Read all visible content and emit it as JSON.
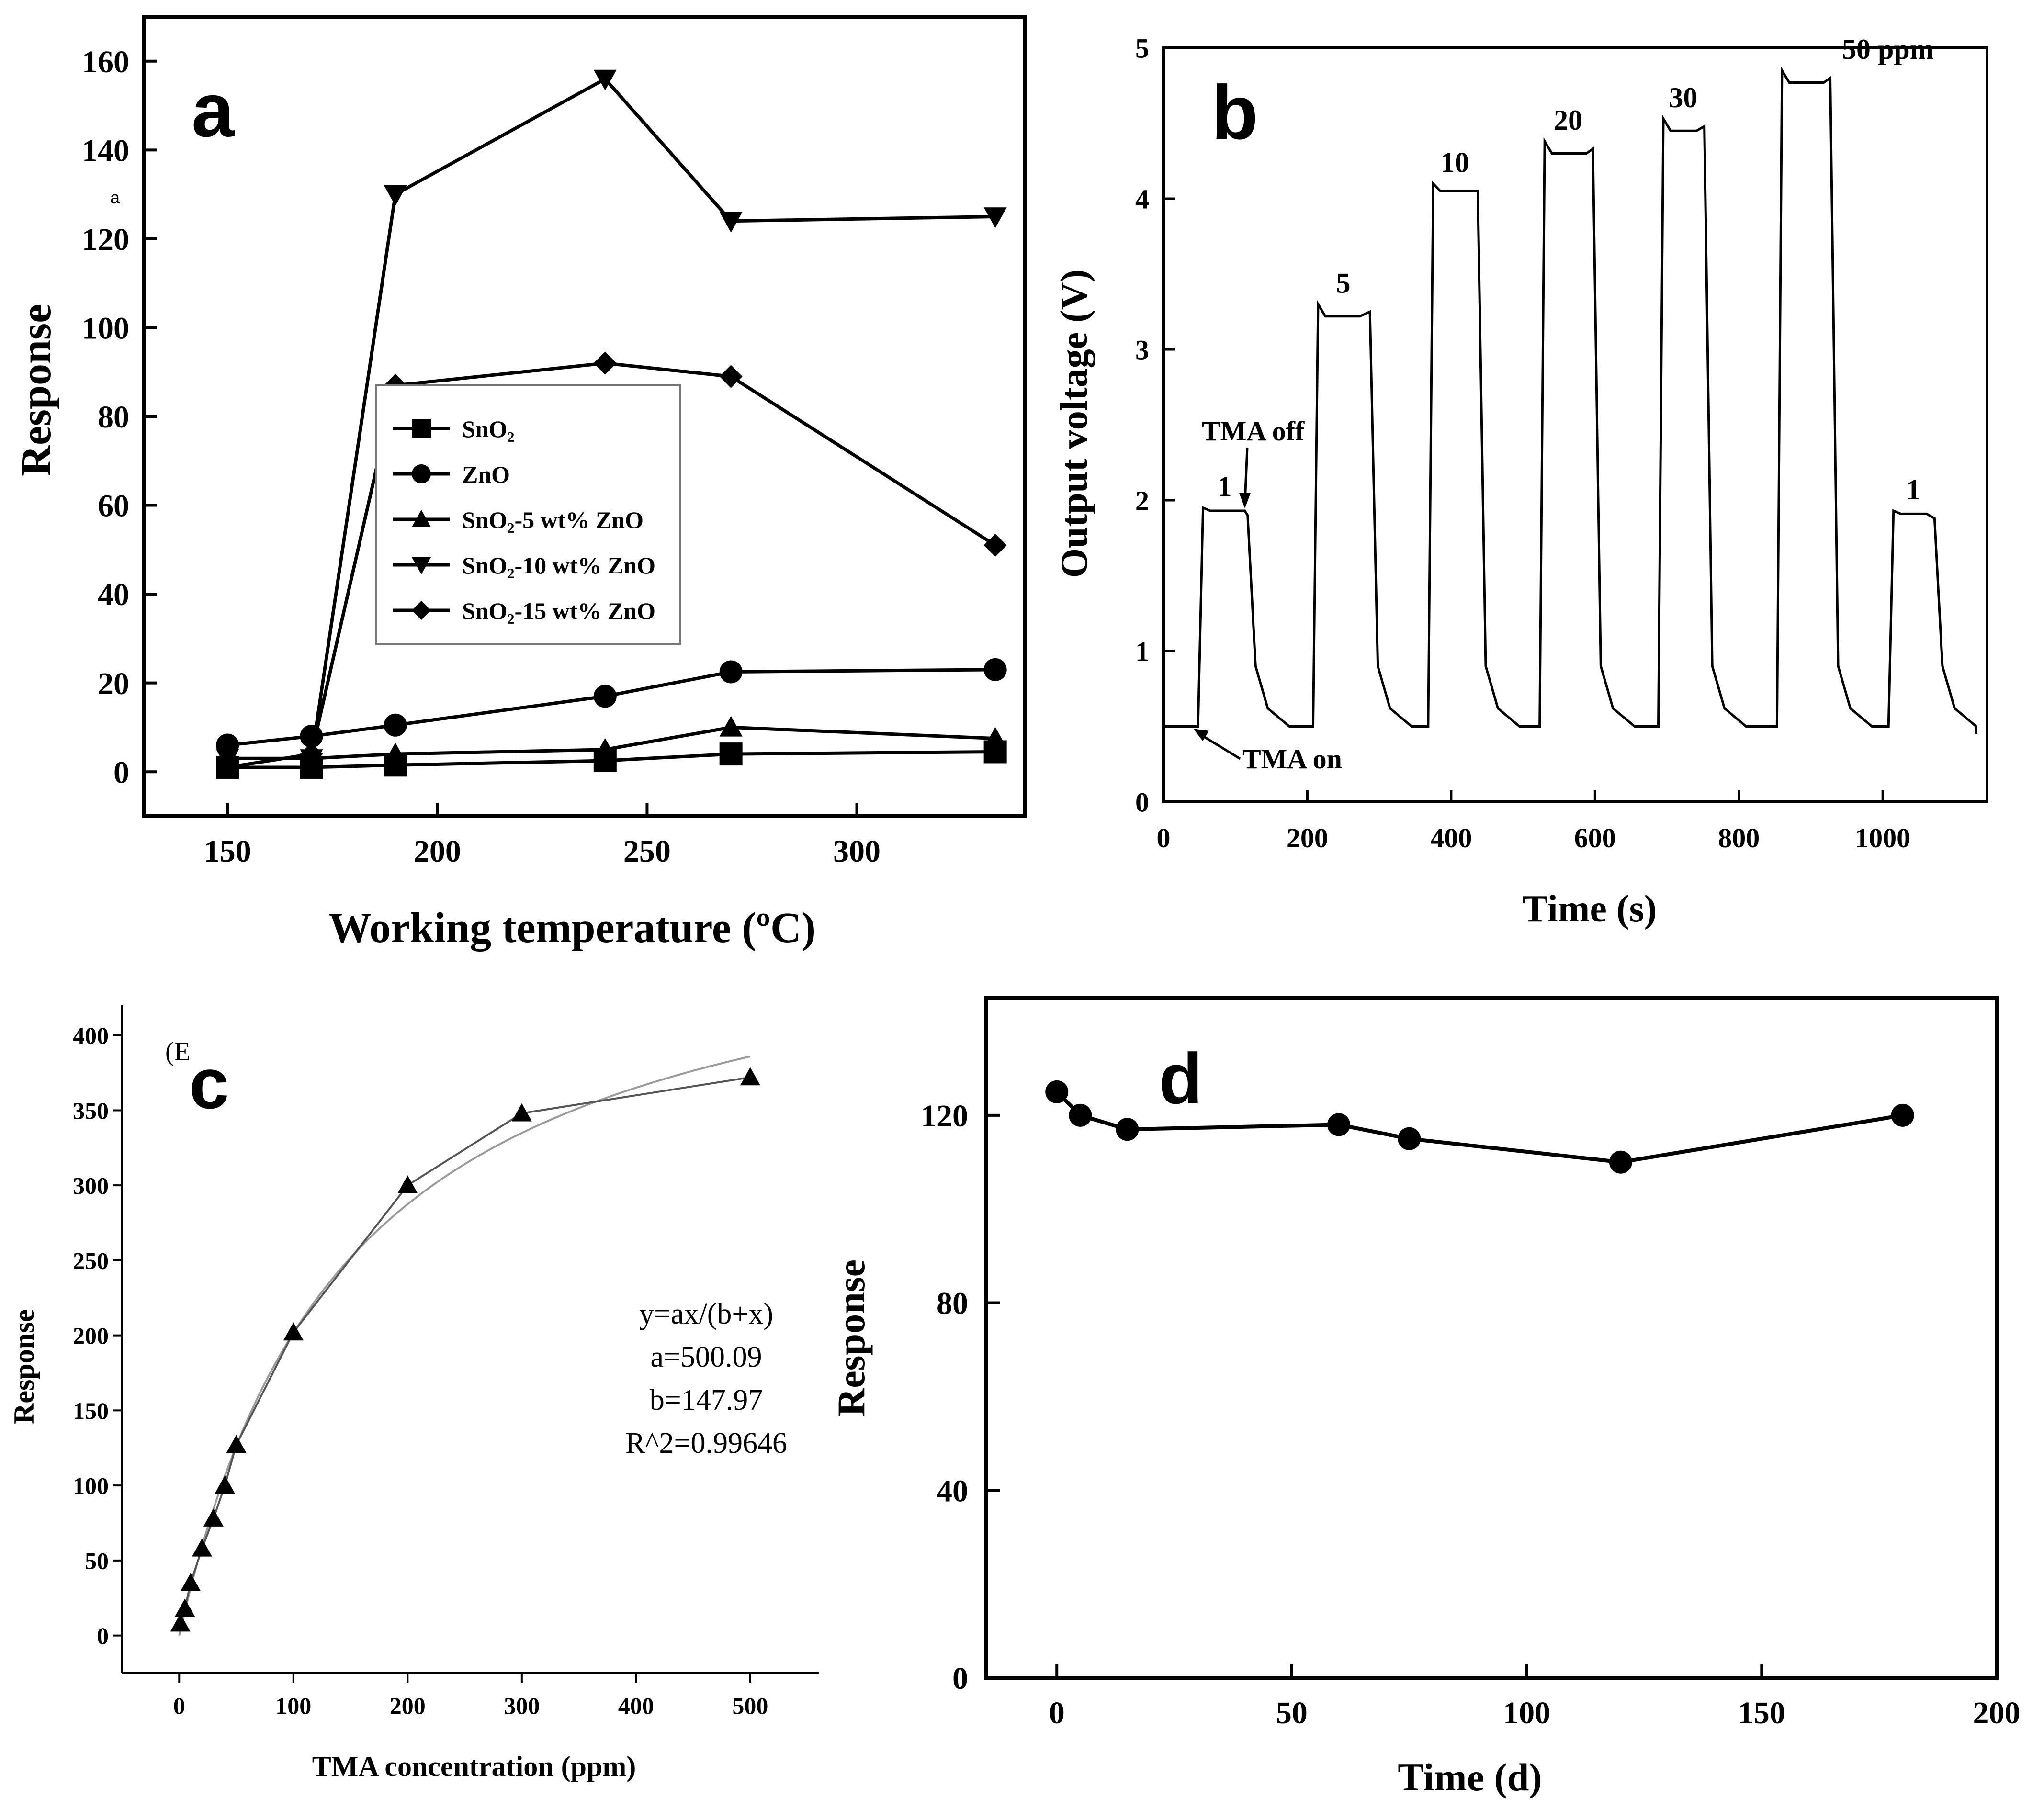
{
  "figure": {
    "colors": {
      "ink": "#000000",
      "fit": "#9a9a9a",
      "background": "#ffffff"
    }
  },
  "chart_data": [
    {
      "id": "a",
      "panel_label": "a",
      "type": "line",
      "xlabel": "Working temperature (ºC)",
      "ylabel": "Response",
      "stray_mark": "a",
      "xlim": [
        130,
        340
      ],
      "ylim": [
        -10,
        170
      ],
      "xticks": [
        150,
        200,
        250,
        300
      ],
      "yticks": [
        0,
        20,
        40,
        60,
        80,
        100,
        120,
        140,
        160
      ],
      "x": [
        150,
        170,
        190,
        240,
        270,
        333
      ],
      "legend_position": "center-left",
      "series": [
        {
          "name": "SnO₂",
          "marker": "square",
          "values": [
            1,
            1,
            1.5,
            2.5,
            4,
            4.5
          ]
        },
        {
          "name": "ZnO",
          "marker": "circle",
          "values": [
            6,
            8,
            10.5,
            17,
            22.5,
            23
          ]
        },
        {
          "name": "SnO₂-5 wt% ZnO",
          "marker": "triangle-up",
          "values": [
            3,
            3,
            4,
            5,
            10,
            7.5
          ]
        },
        {
          "name": "SnO₂-10 wt% ZnO",
          "marker": "triangle-down",
          "values": [
            3,
            3,
            130,
            156,
            124,
            125
          ]
        },
        {
          "name": "SnO₂-15 wt% ZnO",
          "marker": "diamond",
          "values": [
            1,
            4,
            87,
            92,
            89,
            51
          ]
        }
      ]
    },
    {
      "id": "b",
      "panel_label": "b",
      "type": "line",
      "xlabel": "Time (s)",
      "ylabel": "Output voltage (V)",
      "xlim": [
        0,
        1145
      ],
      "ylim": [
        0,
        5
      ],
      "xticks": [
        0,
        200,
        400,
        600,
        800,
        1000
      ],
      "yticks": [
        0,
        1,
        2,
        3,
        4,
        5
      ],
      "pulses": [
        {
          "label": "1",
          "on": 50,
          "off": 120,
          "level": 1.9
        },
        {
          "label": "5",
          "on": 210,
          "off": 290,
          "level": 3.25
        },
        {
          "label": "10",
          "on": 370,
          "off": 440,
          "level": 4.05
        },
        {
          "label": "20",
          "on": 525,
          "off": 600,
          "level": 4.33
        },
        {
          "label": "30",
          "on": 690,
          "off": 755,
          "level": 4.48
        },
        {
          "label": "50 ppm",
          "on": 855,
          "off": 930,
          "level": 4.8
        },
        {
          "label": "1",
          "on": 1010,
          "off": 1075,
          "level": 1.88
        }
      ],
      "baseline": 0.5,
      "annotations": [
        "TMA off",
        "TMA on"
      ]
    },
    {
      "id": "c",
      "panel_label": "c",
      "type": "scatter",
      "xlabel": "TMA concentration (ppm)",
      "ylabel": "Response",
      "stray_mark": "(E",
      "xlim": [
        -50,
        560
      ],
      "ylim": [
        -25,
        420
      ],
      "xticks": [
        0,
        100,
        200,
        300,
        400,
        500
      ],
      "yticks": [
        0,
        50,
        100,
        150,
        200,
        250,
        300,
        350,
        400
      ],
      "x": [
        1,
        5,
        10,
        20,
        30,
        40,
        50,
        100,
        200,
        300,
        500
      ],
      "y": [
        8,
        18,
        35,
        58,
        78,
        100,
        127,
        202,
        300,
        348,
        372
      ],
      "fit": {
        "a": 500.09,
        "b": 147.97,
        "x_max": 500
      },
      "equation_lines": [
        "y=ax/(b+x)",
        "a=500.09",
        "b=147.97",
        "R^2=0.99646"
      ]
    },
    {
      "id": "d",
      "panel_label": "d",
      "type": "line",
      "xlabel": "Time (d)",
      "ylabel": "Response",
      "xlim": [
        -15,
        200
      ],
      "ylim": [
        0,
        145
      ],
      "xticks": [
        0,
        50,
        100,
        150,
        200
      ],
      "yticks": [
        0,
        40,
        80,
        120
      ],
      "x": [
        0,
        5,
        15,
        60,
        75,
        120,
        180
      ],
      "y": [
        125,
        120,
        117,
        118,
        115,
        110,
        120
      ]
    }
  ]
}
